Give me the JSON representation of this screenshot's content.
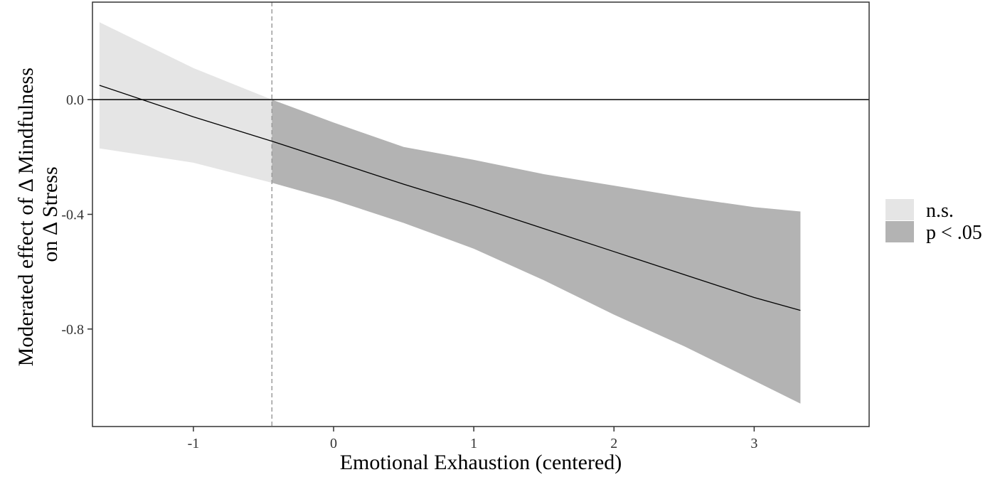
{
  "chart_data": {
    "type": "line",
    "xlabel": "Emotional Exhaustion (centered)",
    "ylabel_lines": [
      "Moderated effect of Δ Mindfulness",
      "on Δ Stress"
    ],
    "xlim": [
      -1.72,
      3.82
    ],
    "ylim": [
      -1.14,
      0.34
    ],
    "x_ticks": [
      -1,
      0,
      1,
      2,
      3
    ],
    "x_tick_labels": [
      "-1",
      "0",
      "1",
      "2",
      "3"
    ],
    "y_ticks": [
      0.0,
      -0.4,
      -0.8
    ],
    "y_tick_labels": [
      "0.0",
      "-0.4",
      "-0.8"
    ],
    "grid": false,
    "reference_lines": {
      "horizontal_y": 0.0,
      "vertical_x": -0.44
    },
    "legend": {
      "placement": "right",
      "entries": [
        {
          "label": "n.s.",
          "color": "#e5e5e5"
        },
        {
          "label": "p < .05",
          "color": "#b3b3b3"
        }
      ]
    },
    "series": [
      {
        "x": [
          -1.67,
          -1.0,
          -0.44,
          0.0,
          0.5,
          1.0,
          1.5,
          2.0,
          2.5,
          3.0,
          3.33
        ],
        "y": [
          0.05,
          -0.06,
          -0.145,
          -0.215,
          -0.295,
          -0.37,
          -0.45,
          -0.53,
          -0.61,
          -0.69,
          -0.735
        ],
        "lower": [
          -0.17,
          -0.22,
          -0.29,
          -0.35,
          -0.43,
          -0.52,
          -0.63,
          -0.75,
          -0.86,
          -0.98,
          -1.06
        ],
        "upper": [
          0.27,
          0.11,
          0.0,
          -0.08,
          -0.165,
          -0.21,
          -0.26,
          -0.3,
          -0.34,
          -0.375,
          -0.39
        ]
      }
    ],
    "colors": {
      "ns": "#e5e5e5",
      "sig": "#b3b3b3",
      "line": "#000000",
      "vline": "#9a9a9a"
    }
  }
}
